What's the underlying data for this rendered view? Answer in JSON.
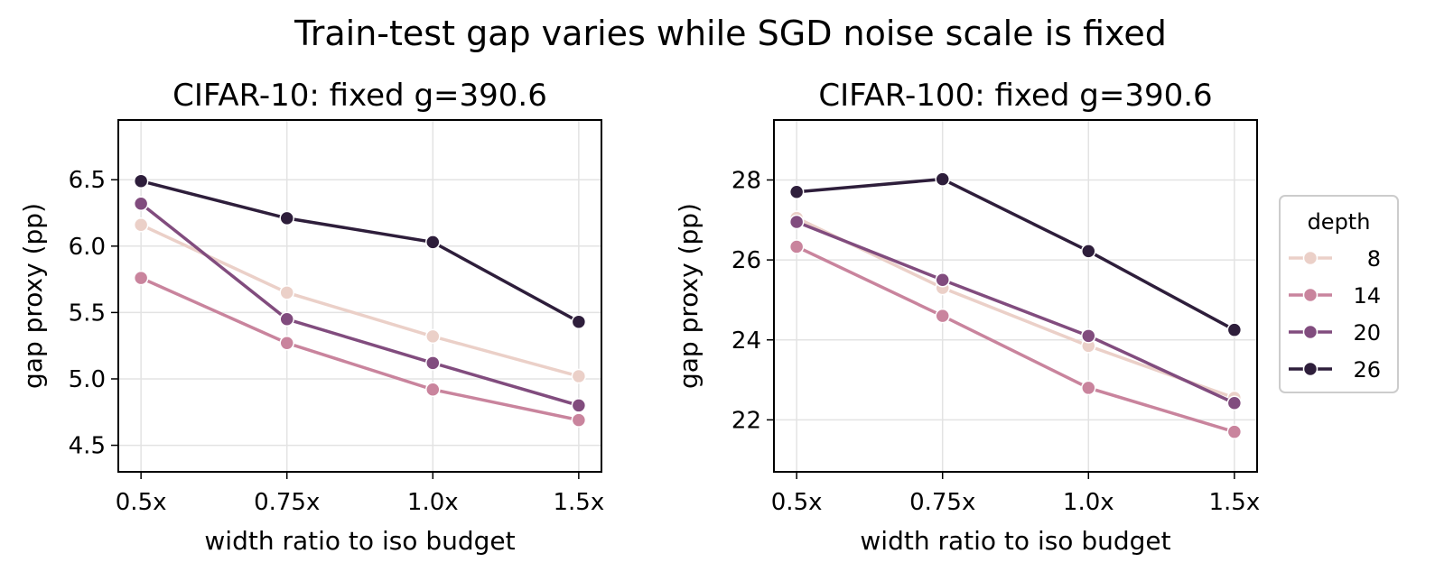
{
  "suptitle": "Train-test gap varies while SGD noise scale is fixed",
  "legend": {
    "title": "depth",
    "placement": "center-right outside",
    "entries": [
      {
        "label": "8",
        "color": "#ebd0c8"
      },
      {
        "label": "14",
        "color": "#c9849d"
      },
      {
        "label": "20",
        "color": "#814c7e"
      },
      {
        "label": "26",
        "color": "#2e1e3b"
      }
    ]
  },
  "chart_data": [
    {
      "type": "line",
      "title": "CIFAR-10: fixed g=390.6",
      "xlabel": "width ratio to iso budget",
      "ylabel": "gap proxy (pp)",
      "categories": [
        "0.5x",
        "0.75x",
        "1.0x",
        "1.5x"
      ],
      "ylim": [
        4.3,
        6.95
      ],
      "yticks": [
        4.5,
        5.0,
        5.5,
        6.0,
        6.5
      ],
      "grid": true,
      "series": [
        {
          "name": "8",
          "color": "#ebd0c8",
          "values": [
            6.16,
            5.65,
            5.32,
            5.02
          ]
        },
        {
          "name": "14",
          "color": "#c9849d",
          "values": [
            5.76,
            5.27,
            4.92,
            4.69
          ]
        },
        {
          "name": "20",
          "color": "#814c7e",
          "values": [
            6.32,
            5.45,
            5.12,
            4.8
          ]
        },
        {
          "name": "26",
          "color": "#2e1e3b",
          "values": [
            6.49,
            6.21,
            6.03,
            5.43
          ]
        }
      ]
    },
    {
      "type": "line",
      "title": "CIFAR-100: fixed g=390.6",
      "xlabel": "width ratio to iso budget",
      "ylabel": "gap proxy (pp)",
      "categories": [
        "0.5x",
        "0.75x",
        "1.0x",
        "1.5x"
      ],
      "ylim": [
        20.7,
        29.5
      ],
      "yticks": [
        22,
        24,
        26,
        28
      ],
      "grid": true,
      "series": [
        {
          "name": "8",
          "color": "#ebd0c8",
          "values": [
            27.05,
            25.3,
            23.85,
            22.55
          ]
        },
        {
          "name": "14",
          "color": "#c9849d",
          "values": [
            26.33,
            24.6,
            22.8,
            21.7
          ]
        },
        {
          "name": "20",
          "color": "#814c7e",
          "values": [
            26.95,
            25.5,
            24.1,
            22.42
          ]
        },
        {
          "name": "26",
          "color": "#2e1e3b",
          "values": [
            27.7,
            28.02,
            26.22,
            24.25
          ]
        }
      ]
    }
  ]
}
